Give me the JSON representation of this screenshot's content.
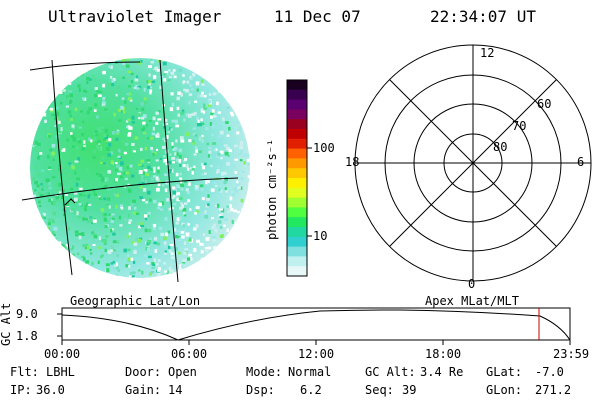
{
  "header": {
    "instrument": "Ultraviolet Imager",
    "date": "11 Dec 07",
    "time": "22:34:07 UT"
  },
  "colorbar": {
    "unit_label": "photon cm⁻²s⁻¹",
    "tick_labels": [
      "100",
      "10"
    ],
    "colors": [
      "#1a0020",
      "#3a0050",
      "#5a0070",
      "#7a0060",
      "#9a0020",
      "#c00000",
      "#e02000",
      "#ff6000",
      "#ff9900",
      "#ffc800",
      "#fff000",
      "#e0ff20",
      "#a0ff30",
      "#50ff40",
      "#20e860",
      "#20d8a0",
      "#30d0d0",
      "#80e0e0",
      "#c0f0f0",
      "#e8f8f8"
    ]
  },
  "polar_plot": {
    "mlt_labels": {
      "top": "12",
      "left": "18",
      "right": "6",
      "bottom": "0"
    },
    "lat_labels": [
      "60",
      "70",
      "80"
    ]
  },
  "image_labels": {
    "left": "Geographic Lat/Lon",
    "right": "Apex MLat/MLT"
  },
  "altitude_plot": {
    "ylabel": "GC Alt",
    "y_ticks": [
      "9.0",
      "1.8"
    ],
    "x_ticks": [
      "00:00",
      "06:00",
      "12:00",
      "18:00",
      "23:59"
    ],
    "marker_color": "#cc0000"
  },
  "footer": {
    "row1": [
      {
        "key": "Flt:",
        "value": "LBHL"
      },
      {
        "key": "Door:",
        "value": "Open"
      },
      {
        "key": "Mode:",
        "value": "Normal"
      },
      {
        "key": "GC Alt:",
        "value": "3.4 Re"
      },
      {
        "key": "GLat:",
        "value": "-7.0"
      }
    ],
    "row2": [
      {
        "key": "IP:",
        "value": "36.0"
      },
      {
        "key": "Gain:",
        "value": "14"
      },
      {
        "key": "Dsp:",
        "value": "6.2"
      },
      {
        "key": "Seq:",
        "value": "39"
      },
      {
        "key": "GLon:",
        "value": "271.2"
      }
    ]
  }
}
